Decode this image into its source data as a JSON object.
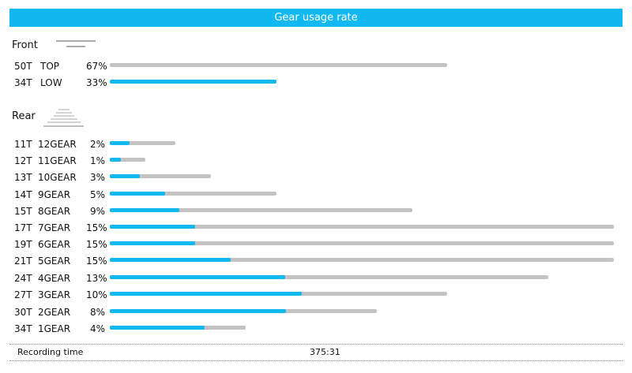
{
  "header": {
    "title": "Gear usage rate"
  },
  "front": {
    "title": "Front",
    "rows": [
      {
        "teeth": "50T",
        "gear": "TOP",
        "pct": "67%",
        "usage": 0.67,
        "fill": 0
      },
      {
        "teeth": "34T",
        "gear": "LOW",
        "pct": "33%",
        "usage": 0.33,
        "fill": 1
      }
    ]
  },
  "rear": {
    "title": "Rear",
    "rows": [
      {
        "teeth": "11T",
        "gear": "12GEAR",
        "pct": "2%",
        "track": 0.13,
        "fill": 0.3
      },
      {
        "teeth": "12T",
        "gear": "11GEAR",
        "pct": "1%",
        "track": 0.07,
        "fill": 0.3
      },
      {
        "teeth": "13T",
        "gear": "10GEAR",
        "pct": "3%",
        "track": 0.2,
        "fill": 0.3
      },
      {
        "teeth": "14T",
        "gear": "9GEAR",
        "pct": "5%",
        "track": 0.33,
        "fill": 0.33
      },
      {
        "teeth": "15T",
        "gear": "8GEAR",
        "pct": "9%",
        "track": 0.6,
        "fill": 0.23
      },
      {
        "teeth": "17T",
        "gear": "7GEAR",
        "pct": "15%",
        "track": 1.0,
        "fill": 0.17
      },
      {
        "teeth": "19T",
        "gear": "6GEAR",
        "pct": "15%",
        "track": 1.0,
        "fill": 0.17
      },
      {
        "teeth": "21T",
        "gear": "5GEAR",
        "pct": "15%",
        "track": 1.0,
        "fill": 0.24
      },
      {
        "teeth": "24T",
        "gear": "4GEAR",
        "pct": "13%",
        "track": 0.87,
        "fill": 0.4
      },
      {
        "teeth": "27T",
        "gear": "3GEAR",
        "pct": "10%",
        "track": 0.67,
        "fill": 0.57
      },
      {
        "teeth": "30T",
        "gear": "2GEAR",
        "pct": "8%",
        "track": 0.53,
        "fill": 0.66
      },
      {
        "teeth": "34T",
        "gear": "1GEAR",
        "pct": "4%",
        "track": 0.27,
        "fill": 0.7
      }
    ]
  },
  "footer": {
    "label": "Recording time",
    "value": "375:31"
  },
  "colors": {
    "accent": "#12b8f0",
    "track": "#c3c3c3",
    "header_text": "#ffffff"
  }
}
